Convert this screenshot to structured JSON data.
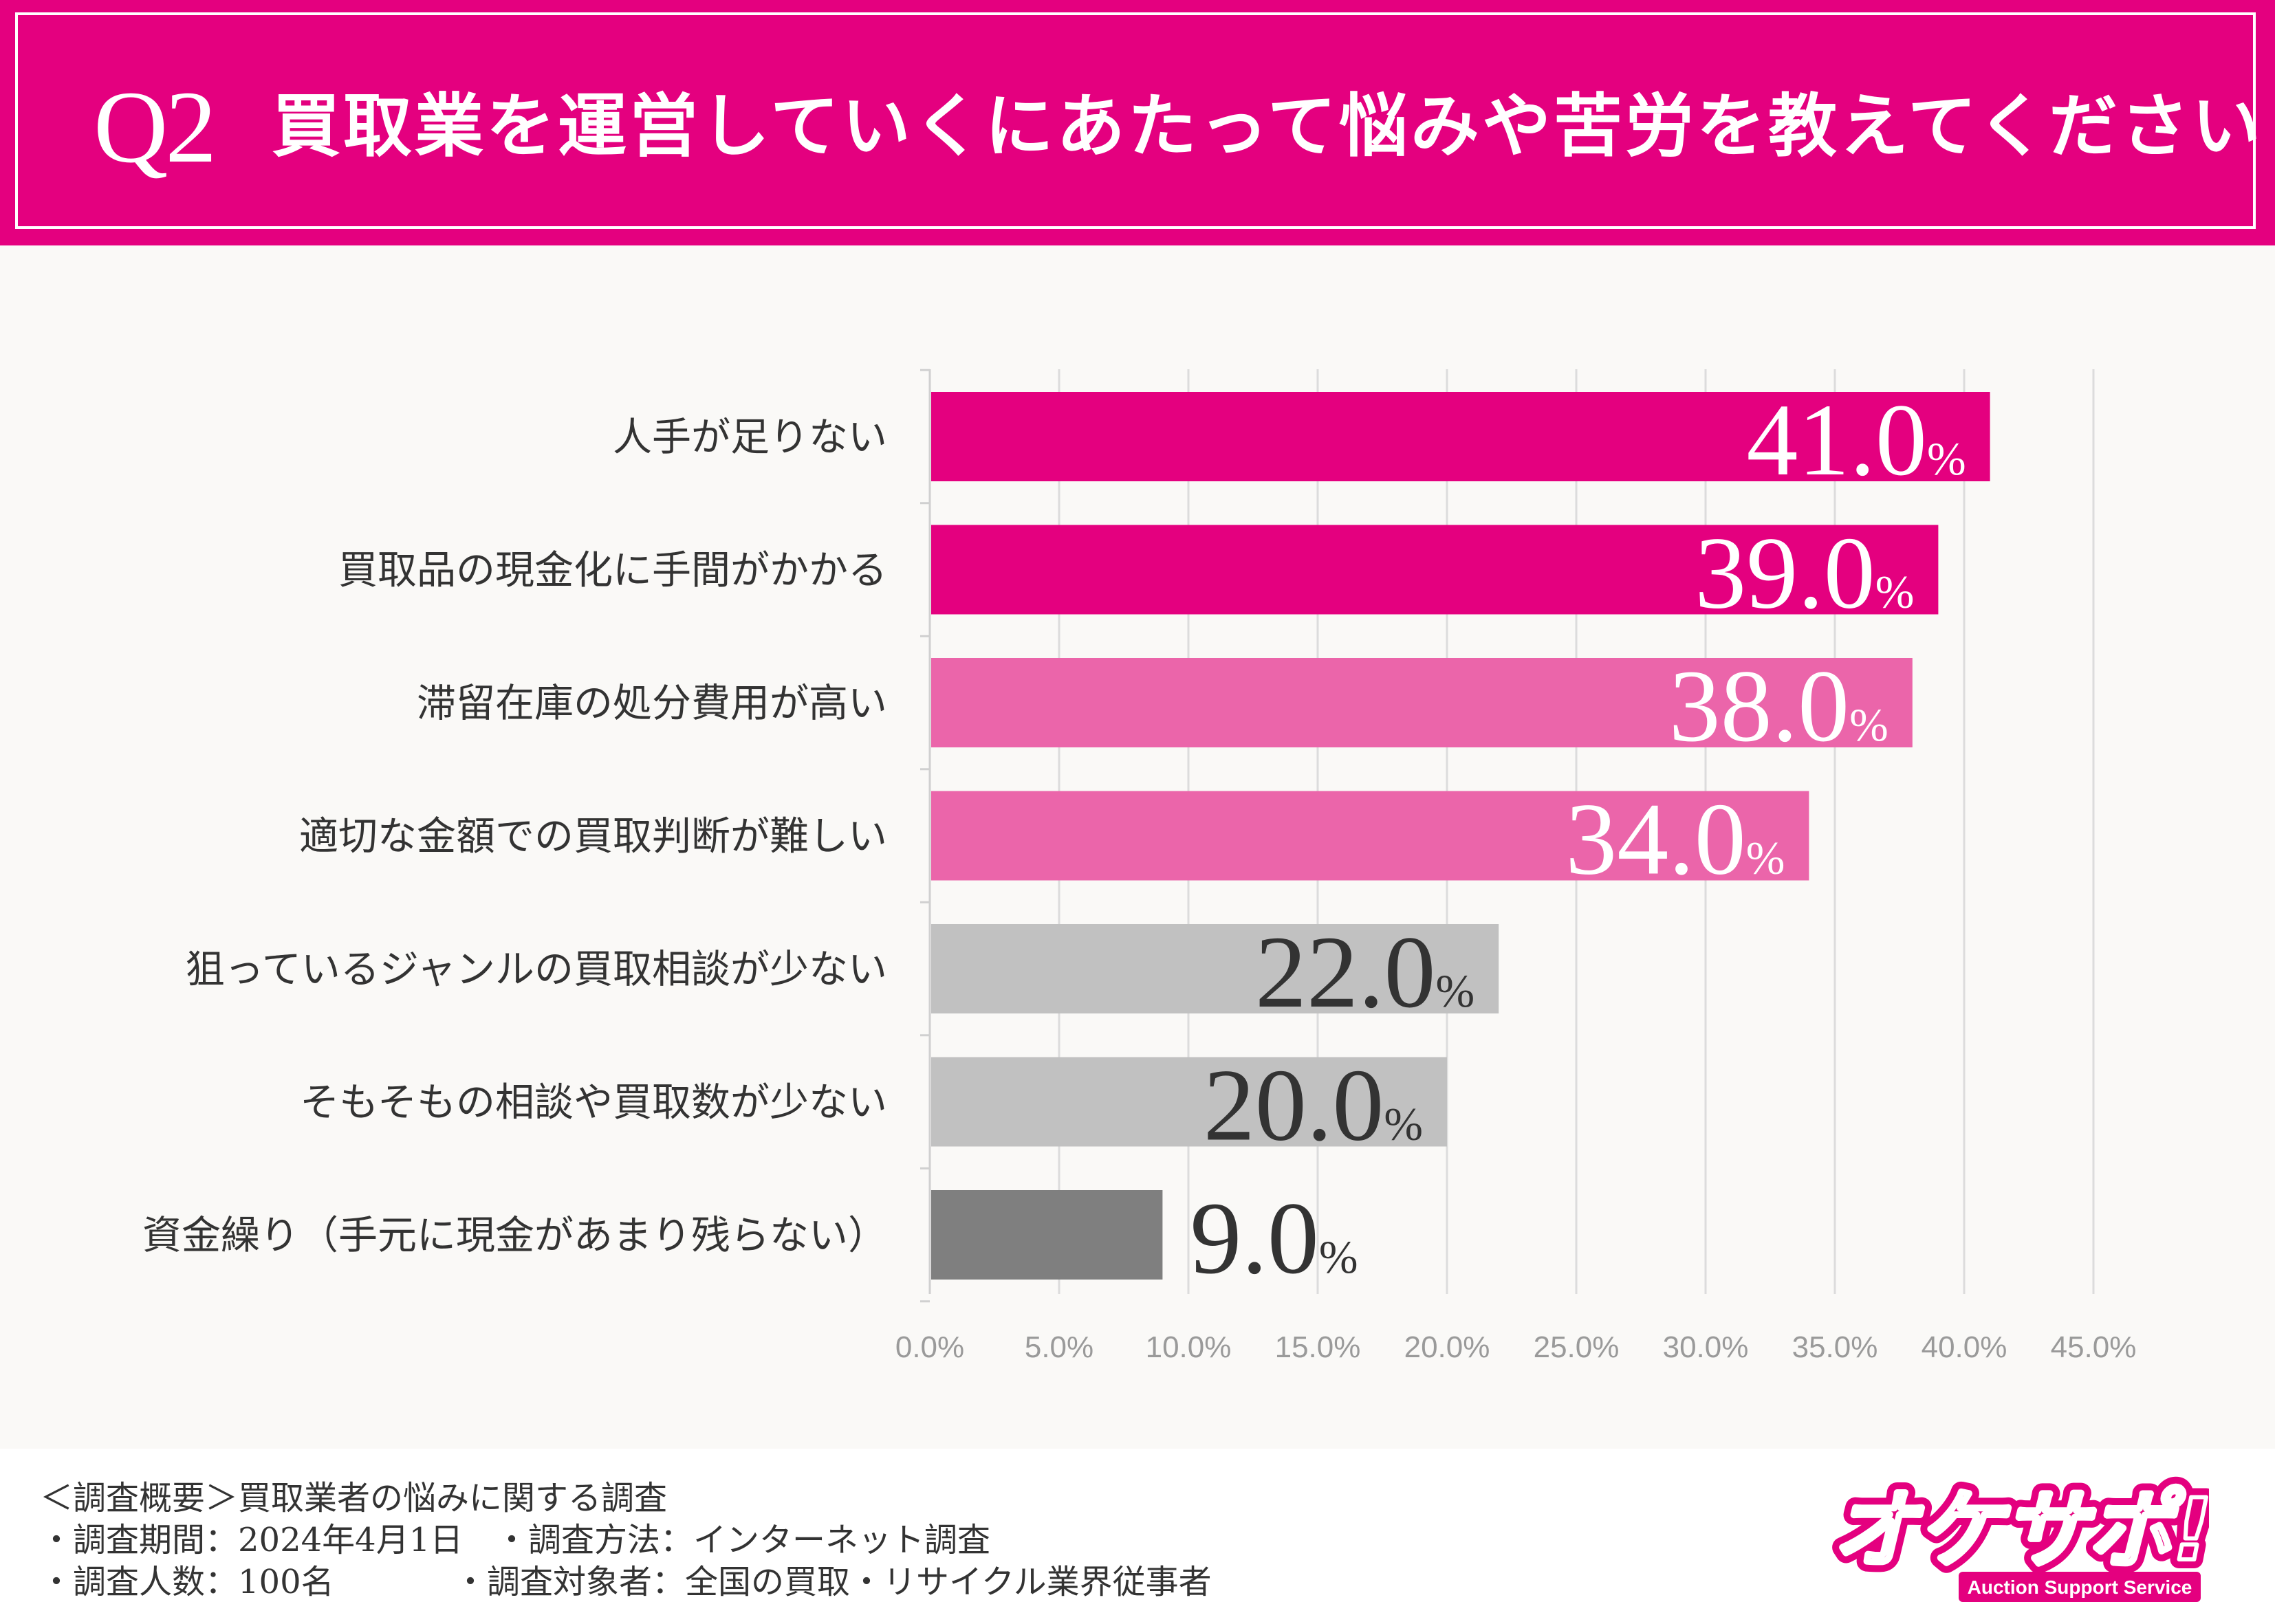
{
  "header": {
    "q_label": "Q2",
    "title": "買取業を運営していくにあたって悩みや苦労を教えてください"
  },
  "colors": {
    "brand": "#e4007f",
    "top_bar": "#e4007f",
    "mid_bar": "#eb65aa",
    "light_gray_bar": "#c1c1c1",
    "dark_gray_bar": "#7f7f7f",
    "grid": "#dcdcdc"
  },
  "chart_data": {
    "type": "bar",
    "orientation": "horizontal",
    "title": "買取業を運営していくにあたって悩みや苦労を教えてください",
    "categories": [
      "人手が足りない",
      "買取品の現金化に手間がかかる",
      "滞留在庫の処分費用が高い",
      "適切な金額での買取判断が難しい",
      "狙っているジャンルの買取相談が少ない",
      "そもそもの相談や買取数が少ない",
      "資金繰り（手元に現金があまり残らない）"
    ],
    "values": [
      41.0,
      39.0,
      38.0,
      34.0,
      22.0,
      20.0,
      9.0
    ],
    "value_labels": [
      "41.0",
      "39.0",
      "38.0",
      "34.0",
      "22.0",
      "20.0",
      "9.0"
    ],
    "value_suffix": "%",
    "bar_color_keys": [
      "top_bar",
      "top_bar",
      "mid_bar",
      "mid_bar",
      "light_gray_bar",
      "light_gray_bar",
      "dark_gray_bar"
    ],
    "label_color_keys": [
      "white",
      "white",
      "white",
      "white",
      "dark",
      "dark",
      "dark"
    ],
    "xlim": [
      0,
      45
    ],
    "x_ticks": [
      0,
      5,
      10,
      15,
      20,
      25,
      30,
      35,
      40,
      45
    ],
    "x_tick_labels": [
      "0.0%",
      "5.0%",
      "10.0%",
      "15.0%",
      "20.0%",
      "25.0%",
      "30.0%",
      "35.0%",
      "40.0%",
      "45.0%"
    ],
    "grid": true,
    "xlabel": "",
    "ylabel": ""
  },
  "footer": {
    "line1": "＜調査概要＞買取業者の悩みに関する調査",
    "period": "・調査期間：2024年4月1日",
    "method": "・調査方法：インターネット調査",
    "count": "・調査人数：100名",
    "target": "・調査対象者：全国の買取・リサイクル業界従事者"
  },
  "logo": {
    "text": "オケサポ!",
    "subtitle": "Auction Support Service"
  }
}
